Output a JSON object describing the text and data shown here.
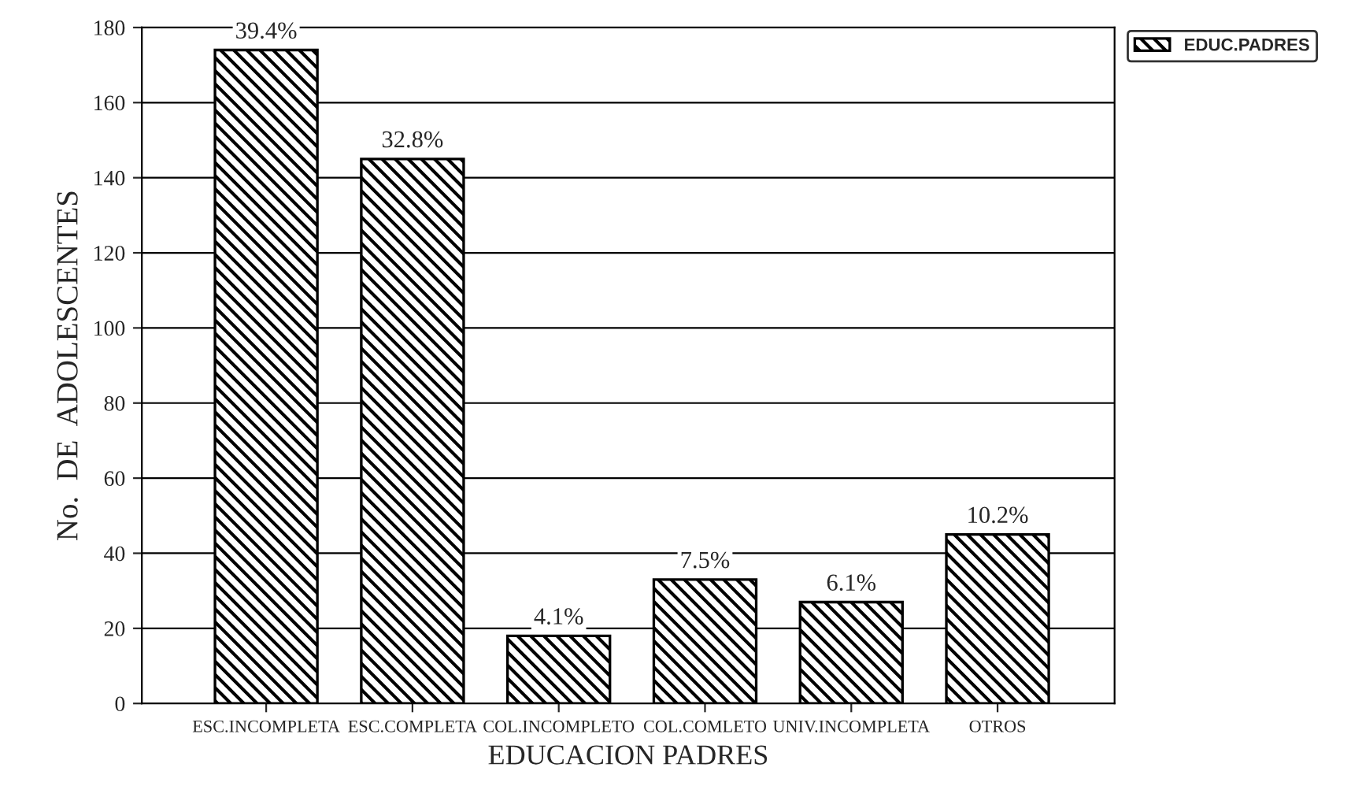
{
  "chart_data": {
    "type": "bar",
    "xlabel": "EDUCACION PADRES",
    "ylabel": "No.  DE  ADOLESCENTES",
    "categories": [
      "ESC.INCOMPLETA",
      "ESC.COMPLETA",
      "COL.INCOMPLETO",
      "COL.COMLETO",
      "UNIV.INCOMPLETA",
      "OTROS"
    ],
    "series": [
      {
        "name": "EDUC.PADRES",
        "color": "#000000",
        "values": [
          174,
          145,
          18,
          33,
          27,
          45
        ]
      }
    ],
    "annotations": [
      {
        "text": "39.4%",
        "x": "ESC.INCOMPLETA",
        "y": 174
      },
      {
        "text": "32.8%",
        "x": "ESC.COMPLETA",
        "y": 145
      },
      {
        "text": "4.1%",
        "x": "COL.INCOMPLETO",
        "y": 18
      },
      {
        "text": "7.5%",
        "x": "COL.COMLETO",
        "y": 33
      },
      {
        "text": "6.1%",
        "x": "UNIV.INCOMPLETA",
        "y": 27
      },
      {
        "text": "10.2%",
        "x": "OTROS",
        "y": 45
      }
    ],
    "ylim": [
      0,
      180
    ],
    "yticks": [
      0,
      20,
      40,
      60,
      80,
      100,
      120,
      140,
      160,
      180
    ],
    "grid": "y",
    "legend": "top right"
  }
}
